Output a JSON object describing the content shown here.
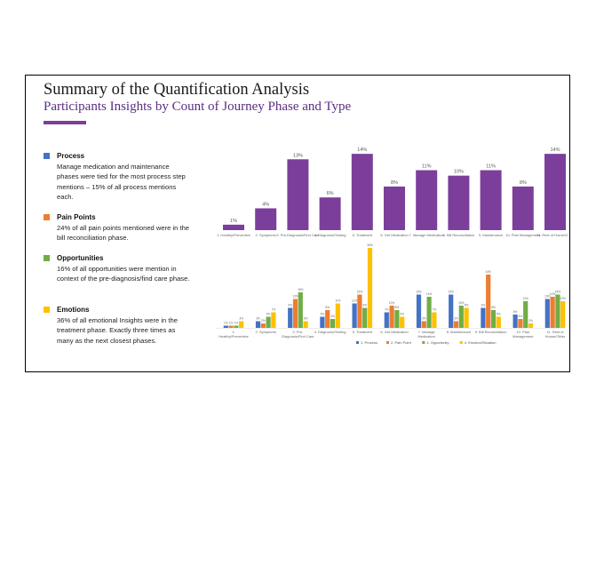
{
  "title": "Summary of the Quantification Analysis",
  "subtitle": "Participants Insights by Count of Journey Phase and Type",
  "colors": {
    "accent": "#7b3f9b",
    "purple": "#7b3f9b",
    "process": "#4472c4",
    "pain": "#ed7d31",
    "opportunity": "#70ad47",
    "emotion": "#ffc000"
  },
  "insights": [
    {
      "title": "Process",
      "text": "Manage medication and maintenance phases were tied for the most process step mentions – 15% of all process mentions each.",
      "color": "#4472c4"
    },
    {
      "title": "Pain Points",
      "text": "24% of all pain points mentioned were in the bill reconciliation phase.",
      "color": "#ed7d31"
    },
    {
      "title": "Opportunities",
      "text": "16% of all opportunities were mention in context of the pre-diagnosis/find care phase.",
      "color": "#70ad47"
    },
    {
      "title": "Emotions",
      "text": "36% of all emotional Insights were in the treatment phase. Exactly three times as many as the next closest phases.",
      "color": "#ffc000"
    }
  ],
  "chart_data": [
    {
      "type": "bar",
      "categories": [
        "1. Healthy/Preventive",
        "2. Symptoms",
        "3. Pre-Diagnosis/Find Care",
        "4. Diagnosis/Testing",
        "5. Treatment",
        "6. Get Medication",
        "7. Manage Medication",
        "8. Bill Reconciliation",
        "9. Maintenance",
        "10. Plan Management",
        "11. Rest of Home/Other"
      ],
      "values": [
        1,
        4,
        13,
        6,
        14,
        8,
        11,
        10,
        11,
        8,
        14
      ],
      "data_labels": [
        "1%",
        "4%",
        "13%",
        "6%",
        "14%",
        "8%",
        "11%",
        "10%",
        "11%",
        "8%",
        "14%"
      ],
      "ylim": [
        0,
        15
      ]
    },
    {
      "type": "bar",
      "categories": [
        "1.\nHealthy/Preventive",
        "2. Symptoms",
        "3. Pre-\nDiagnosis/Find Care",
        "4. Diagnosis/Testing",
        "5. Treatment",
        "6. Get Medication",
        "7. Manage\nMedication",
        "8. Maintenance",
        "9. Bill Reconciliation",
        "10. Plan\nManagement",
        "11. Rest of\nHouse/Other"
      ],
      "series": [
        {
          "name": "1. Process",
          "values": [
            1,
            3,
            9,
            5,
            11,
            7,
            15,
            15,
            9,
            6,
            13
          ]
        },
        {
          "name": "2. Pain Point",
          "values": [
            1,
            2,
            13,
            8,
            15,
            10,
            3,
            3,
            24,
            4,
            14
          ]
        },
        {
          "name": "3. Opportunity",
          "values": [
            1,
            5,
            16,
            4,
            9,
            8,
            14,
            10,
            8,
            12,
            15
          ]
        },
        {
          "name": "4. Emotion/Situation",
          "values": [
            3,
            7,
            3,
            11,
            36,
            5,
            7,
            9,
            5,
            2,
            12
          ]
        }
      ],
      "ylim": [
        0,
        36
      ]
    }
  ]
}
